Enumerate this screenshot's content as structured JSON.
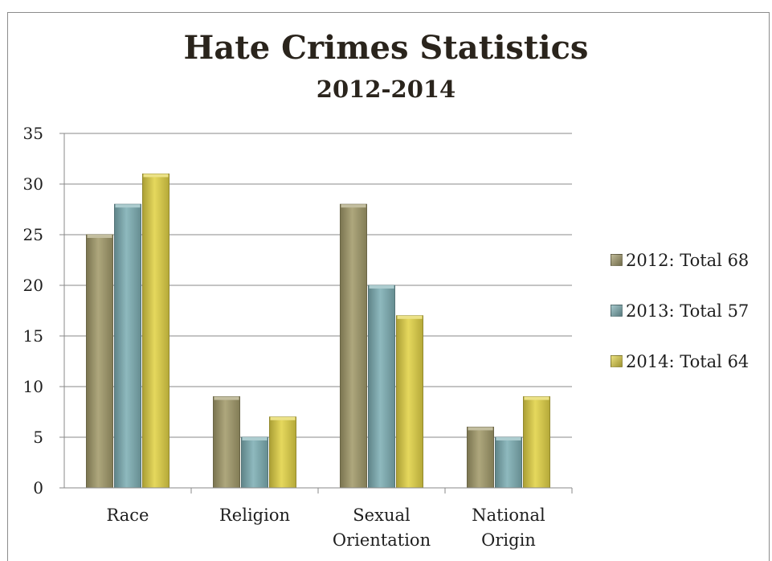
{
  "chart_data": {
    "type": "bar",
    "title": "Hate Crimes Statistics",
    "subtitle": "2012-2014",
    "categories": [
      [
        "Race"
      ],
      [
        "Religion"
      ],
      [
        "Sexual",
        "Orientation"
      ],
      [
        "National",
        "Origin"
      ]
    ],
    "series": [
      {
        "name": "2012: Total 68",
        "color": "#a39b6b",
        "values": [
          25,
          9,
          28,
          6
        ]
      },
      {
        "name": "2013: Total 57",
        "color": "#7fb0b5",
        "values": [
          28,
          5,
          20,
          5
        ]
      },
      {
        "name": "2014: Total 64",
        "color": "#e2d347",
        "values": [
          31,
          7,
          17,
          9
        ]
      }
    ],
    "ylim": [
      0,
      35
    ],
    "yticks": [
      0,
      5,
      10,
      15,
      20,
      25,
      30,
      35
    ],
    "grid": true,
    "legend": "right"
  }
}
